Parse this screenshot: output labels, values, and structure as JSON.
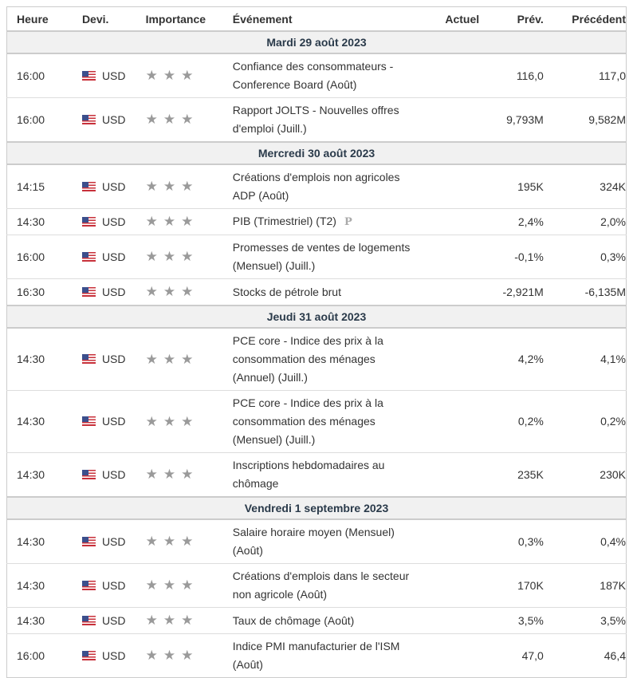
{
  "headers": {
    "time": "Heure",
    "currency": "Devi.",
    "importance": "Importance",
    "event": "Événement",
    "actual": "Actuel",
    "forecast": "Prév.",
    "previous": "Précédent"
  },
  "colors": {
    "star": "#9a9a9a",
    "day_bg": "#f1f1f1"
  },
  "days": [
    {
      "label": "Mardi 29 août 2023",
      "events": [
        {
          "time": "16:00",
          "currency": "USD",
          "stars": 3,
          "event": "Confiance des consommateurs - Conference Board (Août)",
          "actual": "",
          "forecast": "116,0",
          "previous": "117,0"
        },
        {
          "time": "16:00",
          "currency": "USD",
          "stars": 3,
          "event": "Rapport JOLTS - Nouvelles offres d'emploi (Juill.)",
          "actual": "",
          "forecast": "9,793M",
          "previous": "9,582M"
        }
      ]
    },
    {
      "label": "Mercredi 30 août 2023",
      "events": [
        {
          "time": "14:15",
          "currency": "USD",
          "stars": 3,
          "event": "Créations d'emplois non agricoles ADP (Août)",
          "actual": "",
          "forecast": "195K",
          "previous": "324K"
        },
        {
          "time": "14:30",
          "currency": "USD",
          "stars": 3,
          "event": "PIB (Trimestriel) (T2)",
          "badge": "P",
          "actual": "",
          "forecast": "2,4%",
          "previous": "2,0%"
        },
        {
          "time": "16:00",
          "currency": "USD",
          "stars": 3,
          "event": "Promesses de ventes de logements (Mensuel) (Juill.)",
          "actual": "",
          "forecast": "-0,1%",
          "previous": "0,3%"
        },
        {
          "time": "16:30",
          "currency": "USD",
          "stars": 3,
          "event": "Stocks de pétrole brut",
          "actual": "",
          "forecast": "-2,921M",
          "previous": "-6,135M"
        }
      ]
    },
    {
      "label": "Jeudi 31 août 2023",
      "events": [
        {
          "time": "14:30",
          "currency": "USD",
          "stars": 3,
          "event": "PCE core - Indice des prix à la consommation des ménages (Annuel) (Juill.)",
          "actual": "",
          "forecast": "4,2%",
          "previous": "4,1%"
        },
        {
          "time": "14:30",
          "currency": "USD",
          "stars": 3,
          "event": "PCE core - Indice des prix à la consommation des ménages (Mensuel) (Juill.)",
          "actual": "",
          "forecast": "0,2%",
          "previous": "0,2%"
        },
        {
          "time": "14:30",
          "currency": "USD",
          "stars": 3,
          "event": "Inscriptions hebdomadaires au chômage",
          "actual": "",
          "forecast": "235K",
          "previous": "230K"
        }
      ]
    },
    {
      "label": "Vendredi 1 septembre 2023",
      "events": [
        {
          "time": "14:30",
          "currency": "USD",
          "stars": 3,
          "event": "Salaire horaire moyen (Mensuel) (Août)",
          "actual": "",
          "forecast": "0,3%",
          "previous": "0,4%"
        },
        {
          "time": "14:30",
          "currency": "USD",
          "stars": 3,
          "event": "Créations d'emplois dans le secteur non agricole (Août)",
          "actual": "",
          "forecast": "170K",
          "previous": "187K"
        },
        {
          "time": "14:30",
          "currency": "USD",
          "stars": 3,
          "event": "Taux de chômage (Août)",
          "actual": "",
          "forecast": "3,5%",
          "previous": "3,5%"
        },
        {
          "time": "16:00",
          "currency": "USD",
          "stars": 3,
          "event": "Indice PMI manufacturier de l'ISM (Août)",
          "actual": "",
          "forecast": "47,0",
          "previous": "46,4"
        }
      ]
    }
  ]
}
